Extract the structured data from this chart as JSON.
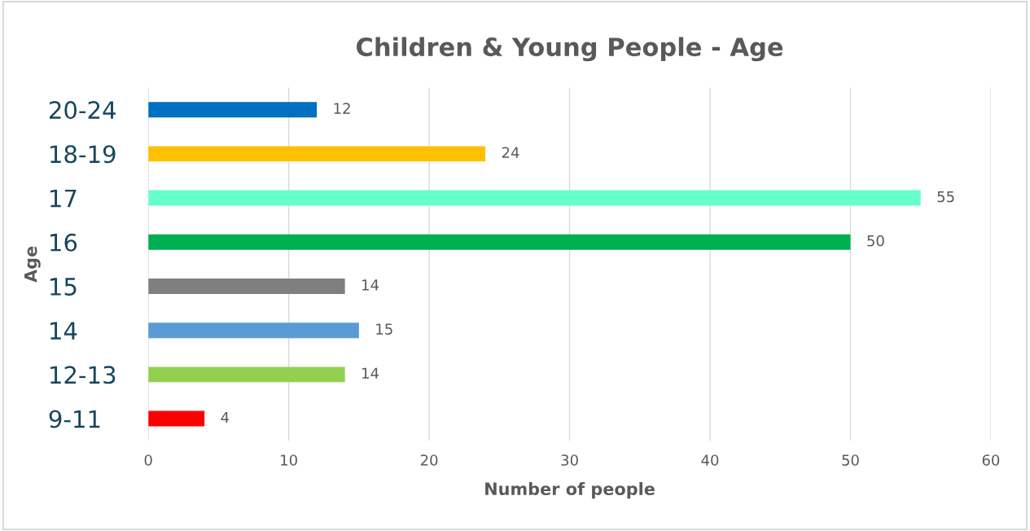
{
  "chart_data": {
    "type": "bar",
    "orientation": "horizontal",
    "title": "Children & Young People - Age",
    "xlabel": "Number of people",
    "ylabel": "Age",
    "categories": [
      "20-24",
      "18-19",
      "17",
      "16",
      "15",
      "14",
      "12-13",
      "9-11"
    ],
    "values": [
      12,
      24,
      55,
      50,
      14,
      15,
      14,
      4
    ],
    "colors": [
      "#0070c0",
      "#ffc000",
      "#66ffcc",
      "#00b050",
      "#7f7f7f",
      "#5b9bd5",
      "#92d050",
      "#ff0000"
    ],
    "xlim": [
      0,
      60
    ],
    "xticks": [
      0,
      10,
      20,
      30,
      40,
      50,
      60
    ],
    "grid": "x",
    "data_labels": true
  }
}
